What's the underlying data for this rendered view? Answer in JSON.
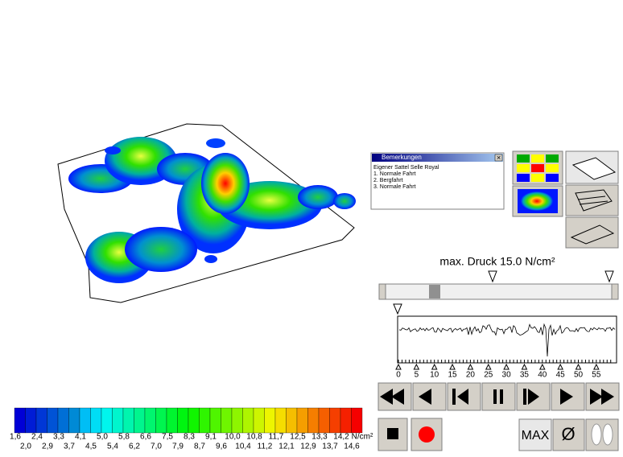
{
  "notes": {
    "title": "Bemerkungen",
    "close": "✕",
    "lines": [
      "Eigener Sattel Selle Royal",
      "1. Normale Fahrt",
      "2. Bergfahrt",
      "3. Normale Fahrt"
    ]
  },
  "max_pressure": "max. Druck 15.0 N/cm²",
  "timeline": {
    "ticks": [
      0,
      5,
      10,
      15,
      20,
      25,
      30,
      35,
      40,
      45,
      50,
      55
    ]
  },
  "buttons": {
    "max": "MAX",
    "mean": "Ø"
  },
  "colorbar": {
    "top": [
      "1,6",
      "2,4",
      "3,3",
      "4,1",
      "5,0",
      "5,8",
      "6,6",
      "7,5",
      "8,3",
      "9,1",
      "10,0",
      "10,8",
      "11,7",
      "12,5",
      "13,3",
      "14,2"
    ],
    "bottom": [
      "2,0",
      "2,9",
      "3,7",
      "4,5",
      "5,4",
      "6,2",
      "7,0",
      "7,9",
      "8,7",
      "9,6",
      "10,4",
      "11,2",
      "12,1",
      "12,9",
      "13,7",
      "14,6"
    ],
    "unit": "N/cm²"
  }
}
